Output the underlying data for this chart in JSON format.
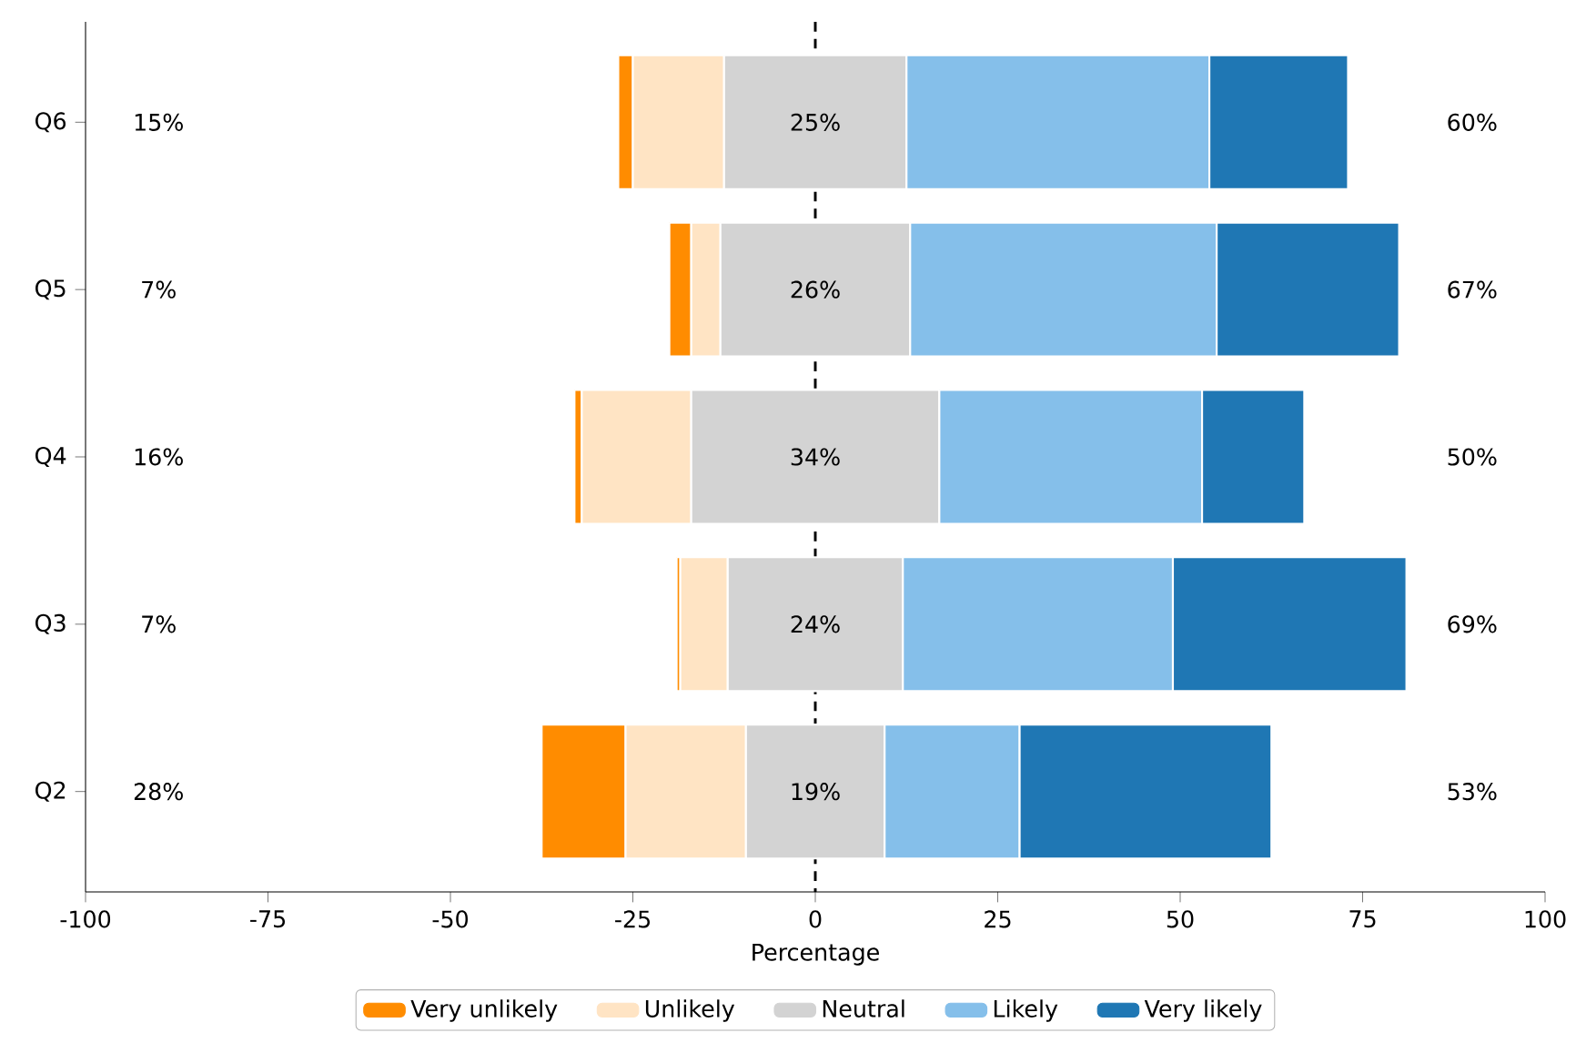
{
  "chart_data": {
    "type": "bar",
    "orientation": "horizontal",
    "xlabel": "Percentage",
    "categories": [
      "Q6",
      "Q5",
      "Q4",
      "Q3",
      "Q2"
    ],
    "series": [
      {
        "name": "Very unlikely",
        "color": "#ff8c00",
        "values": [
          2,
          3,
          1,
          0.5,
          11.5
        ],
        "base": [
          -27,
          -20,
          -33,
          -19,
          -37.5
        ]
      },
      {
        "name": "Unlikely",
        "color": "#ffe4c4",
        "values": [
          12.5,
          4,
          15,
          6.5,
          16.5
        ],
        "base": [
          -25,
          -17,
          -32,
          -18.5,
          -26
        ]
      },
      {
        "name": "Neutral",
        "color": "#d3d3d3",
        "values": [
          25,
          26,
          34,
          24,
          19
        ],
        "base": [
          -12.5,
          -13,
          -17,
          -12,
          -9.5
        ],
        "value_labels": [
          "25%",
          "26%",
          "34%",
          "24%",
          "19%"
        ]
      },
      {
        "name": "Likely",
        "color": "#85bfea",
        "values": [
          41.5,
          42,
          36,
          37,
          18.5
        ],
        "base": [
          12.5,
          13,
          17,
          12,
          9.5
        ]
      },
      {
        "name": "Very likely",
        "color": "#1f77b4",
        "values": [
          19,
          25,
          14,
          32,
          34.5
        ],
        "base": [
          54,
          55,
          53,
          49,
          28
        ]
      }
    ],
    "xlim": [
      -100,
      100
    ],
    "xticks": [
      -100,
      -75,
      -50,
      -25,
      0,
      25,
      50,
      75,
      100
    ],
    "ref_lines": [
      {
        "axis": "x",
        "value": 0,
        "color": "#000000",
        "line_style": "dashed"
      }
    ],
    "annotations": [
      "15%",
      "7%",
      "16%",
      "7%",
      "28%",
      "60%",
      "67%",
      "50%",
      "69%",
      "53%"
    ],
    "legend": "bottom",
    "grid": false
  }
}
